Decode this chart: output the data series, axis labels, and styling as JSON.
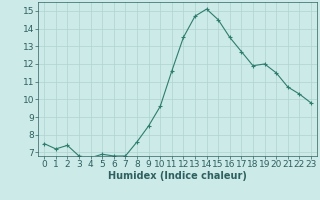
{
  "x": [
    0,
    1,
    2,
    3,
    4,
    5,
    6,
    7,
    8,
    9,
    10,
    11,
    12,
    13,
    14,
    15,
    16,
    17,
    18,
    19,
    20,
    21,
    22,
    23
  ],
  "y": [
    7.5,
    7.2,
    7.4,
    6.8,
    6.7,
    6.9,
    6.8,
    6.8,
    7.6,
    8.5,
    9.6,
    11.6,
    13.5,
    14.7,
    15.1,
    14.5,
    13.5,
    12.7,
    11.9,
    12.0,
    11.5,
    10.7,
    10.3,
    9.8
  ],
  "line_color": "#2e7d6e",
  "marker": "+",
  "marker_size": 3,
  "marker_lw": 0.8,
  "bg_color": "#cceae7",
  "grid_color": "#b0d4d0",
  "xlabel": "Humidex (Indice chaleur)",
  "ylim": [
    6.8,
    15.5
  ],
  "xlim": [
    -0.5,
    23.5
  ],
  "yticks": [
    7,
    8,
    9,
    10,
    11,
    12,
    13,
    14,
    15
  ],
  "xticks": [
    0,
    1,
    2,
    3,
    4,
    5,
    6,
    7,
    8,
    9,
    10,
    11,
    12,
    13,
    14,
    15,
    16,
    17,
    18,
    19,
    20,
    21,
    22,
    23
  ],
  "tick_label_color": "#2e6060",
  "axis_color": "#2e6060",
  "font_size": 6.5,
  "xlabel_fontsize": 7,
  "line_width": 0.8
}
